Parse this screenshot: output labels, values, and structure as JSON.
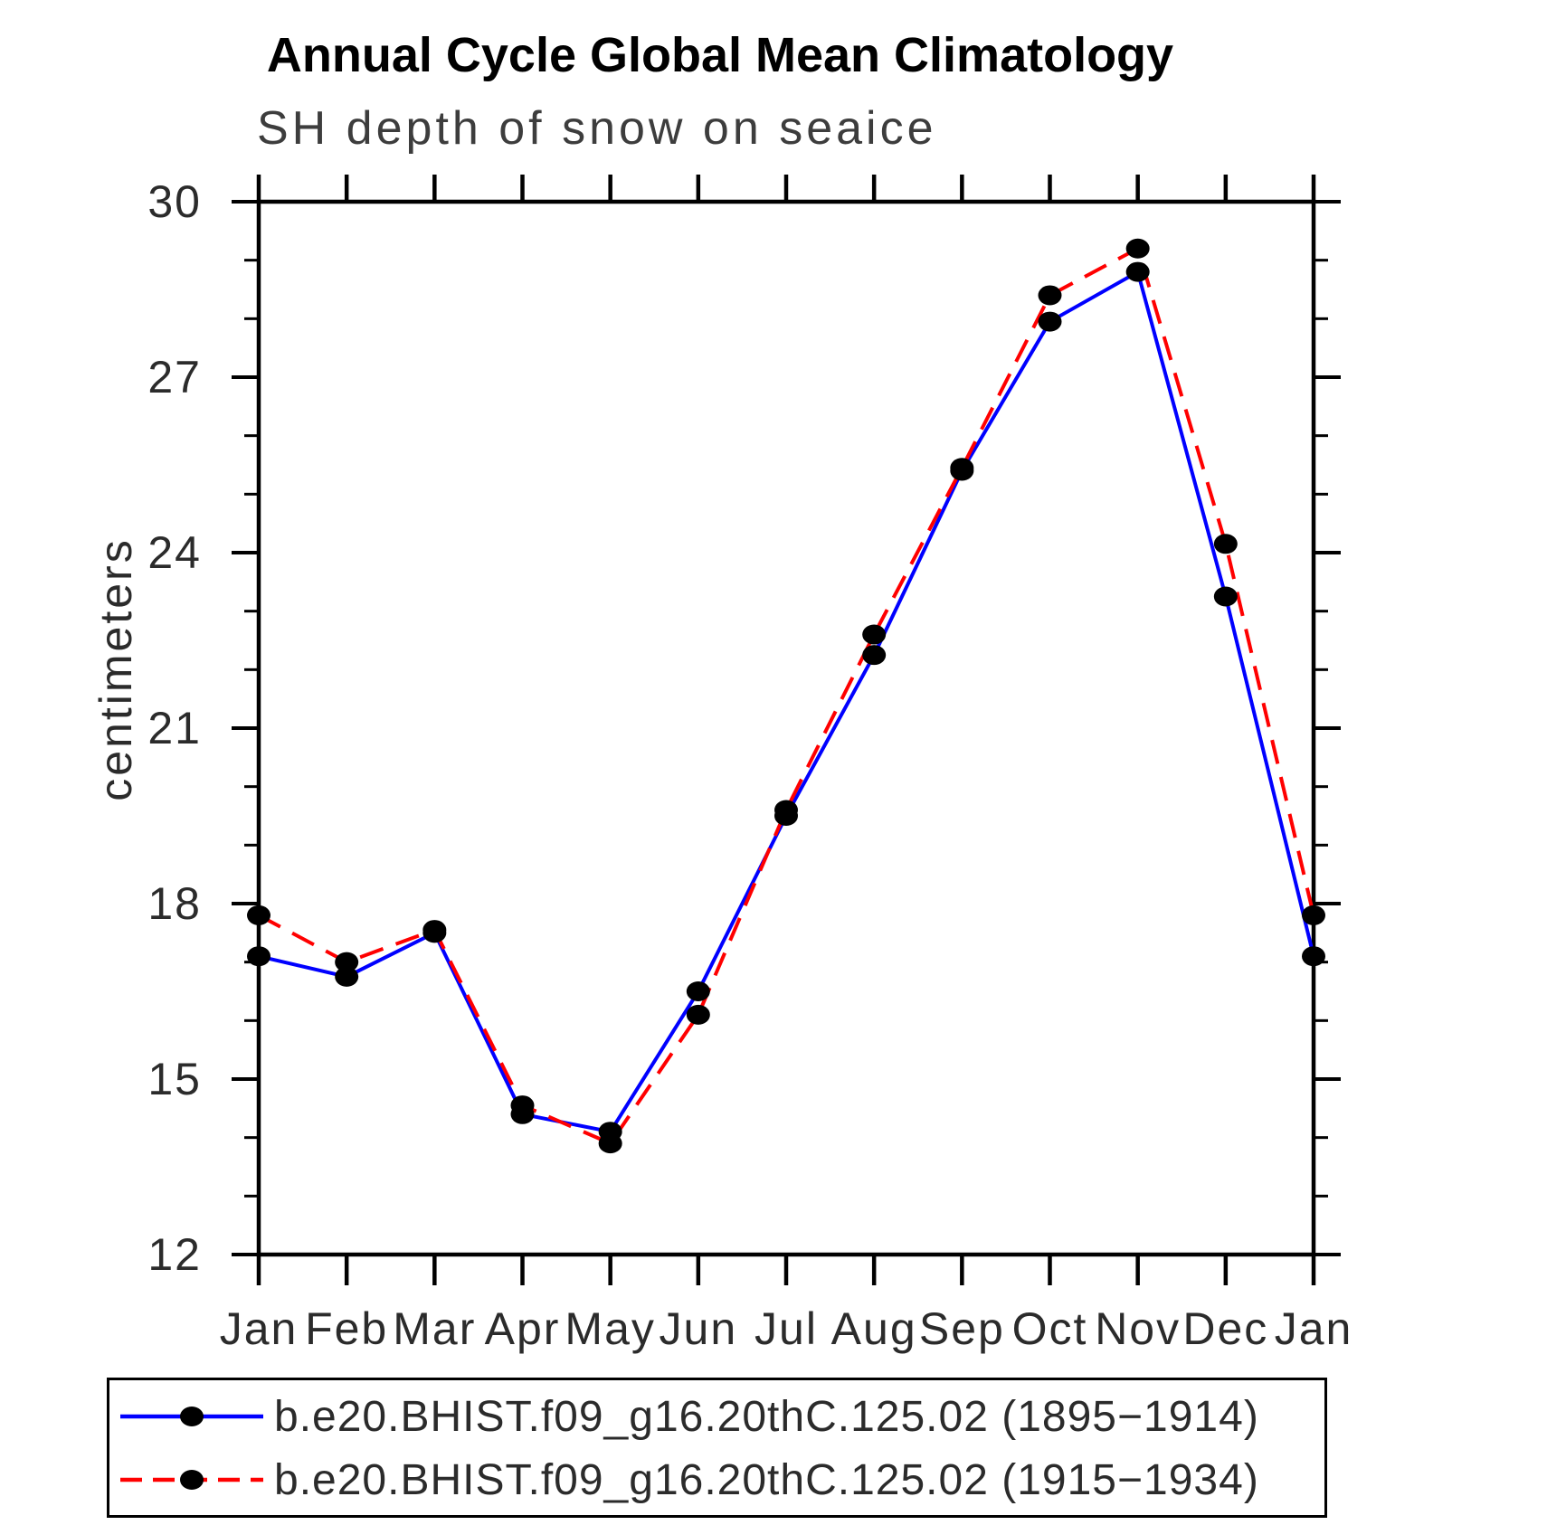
{
  "title": "Annual Cycle Global Mean Climatology",
  "subtitle": "SH depth of snow on seaice",
  "y_axis_label": "centimeters",
  "chart_data": {
    "type": "line",
    "categories": [
      "Jan",
      "Feb",
      "Mar",
      "Apr",
      "May",
      "Jun",
      "Jul",
      "Aug",
      "Sep",
      "Oct",
      "Nov",
      "Dec",
      "Jan"
    ],
    "ylim": [
      12,
      30
    ],
    "yticks": [
      12,
      15,
      18,
      21,
      24,
      27,
      30
    ],
    "minor_tick_step": 1,
    "grid": false,
    "legend_position": "bottom",
    "marker_color": "#000000",
    "series": [
      {
        "name": "b.e20.BHIST.f09_g16.20thC.125.02 (1895−1914)",
        "color": "#0000ff",
        "line_style": "solid",
        "marker": "filled-black-circle",
        "values": [
          17.1,
          16.75,
          17.5,
          14.4,
          14.1,
          16.5,
          19.5,
          22.25,
          25.4,
          27.95,
          28.8,
          23.25,
          17.1
        ]
      },
      {
        "name": "b.e20.BHIST.f09_g16.20thC.125.02 (1915−1934)",
        "color": "#ff0000",
        "line_style": "dashed",
        "marker": "filled-black-circle",
        "values": [
          17.8,
          17.0,
          17.55,
          14.55,
          13.9,
          16.1,
          19.6,
          22.6,
          25.45,
          28.4,
          29.2,
          24.15,
          17.8
        ]
      }
    ]
  },
  "text_colors": {
    "title": "#000000",
    "subtitle": "#3d3d3d",
    "axis_text": "#2b2b2b"
  }
}
